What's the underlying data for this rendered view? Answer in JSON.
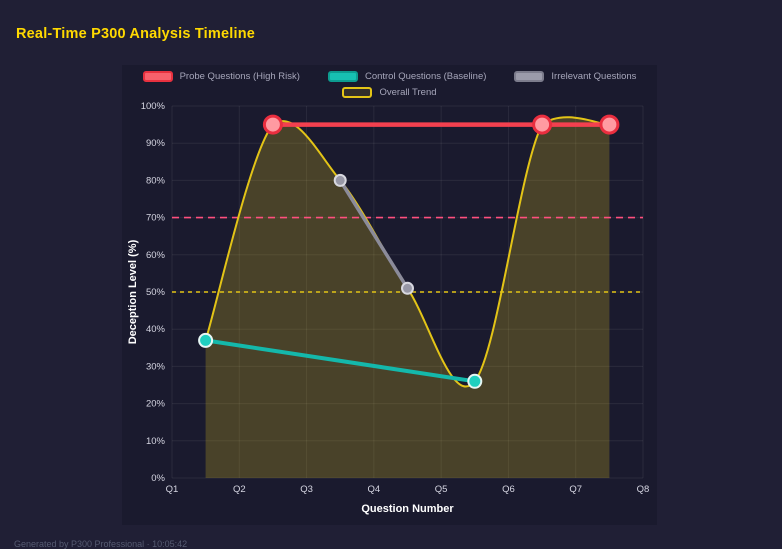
{
  "page": {
    "title": "Real-Time P300 Analysis Timeline",
    "footer": "Generated by P300 Professional · 10:05:42",
    "background": "#201f35",
    "panel_background": "#1a1a2e",
    "title_color": "#ffd900"
  },
  "chart_data": {
    "type": "line",
    "title": "Real-Time P300 Analysis Timeline",
    "x_label": "Question Number",
    "y_label": "Deception Level (%)",
    "x_range": [
      1,
      8
    ],
    "y_range": [
      0,
      100
    ],
    "grid": true,
    "x_ticks": [
      {
        "value": 1,
        "label": "Q1"
      },
      {
        "value": 2,
        "label": "Q2"
      },
      {
        "value": 3,
        "label": "Q3"
      },
      {
        "value": 4,
        "label": "Q4"
      },
      {
        "value": 5,
        "label": "Q5"
      },
      {
        "value": 6,
        "label": "Q6"
      },
      {
        "value": 7,
        "label": "Q7"
      },
      {
        "value": 8,
        "label": "Q8"
      }
    ],
    "y_ticks": [
      {
        "value": 0,
        "label": "0%"
      },
      {
        "value": 10,
        "label": "10%"
      },
      {
        "value": 20,
        "label": "20%"
      },
      {
        "value": 30,
        "label": "30%"
      },
      {
        "value": 40,
        "label": "40%"
      },
      {
        "value": 50,
        "label": "50%"
      },
      {
        "value": 60,
        "label": "60%"
      },
      {
        "value": 70,
        "label": "70%"
      },
      {
        "value": 80,
        "label": "80%"
      },
      {
        "value": 90,
        "label": "90%"
      },
      {
        "value": 100,
        "label": "100%"
      }
    ],
    "legend_rows": [
      [
        {
          "label": "Probe Questions (High Risk)",
          "fill": "#f8616c",
          "border": "#e8313f"
        },
        {
          "label": "Control Questions (Baseline)",
          "fill": "#17c0b2",
          "border": "#0d9c90"
        },
        {
          "label": "Irrelevant Questions",
          "fill": "#9b9baa",
          "border": "#7c7c8c"
        }
      ],
      [
        {
          "label": "Overall Trend",
          "fill": "rgba(227,196,23,0.12)",
          "border": "#e3c417"
        }
      ]
    ],
    "thresholds": [
      {
        "value": 70,
        "color": "#ff4f7e",
        "dash": "7 5"
      },
      {
        "value": 50,
        "color": "#e3c417",
        "dash": "4 4"
      }
    ],
    "series": [
      {
        "name": "Overall Trend",
        "color": "#e3c417",
        "line_width": 2,
        "smooth": true,
        "area_fill": "rgba(227,196,23,0.24)",
        "point_radius": 0,
        "points": [
          {
            "x": 1.5,
            "y": 37
          },
          {
            "x": 2.5,
            "y": 95
          },
          {
            "x": 3.5,
            "y": 80
          },
          {
            "x": 4.5,
            "y": 51
          },
          {
            "x": 5.5,
            "y": 26
          },
          {
            "x": 6.5,
            "y": 95
          },
          {
            "x": 7.5,
            "y": 95
          }
        ]
      },
      {
        "name": "Irrelevant Questions",
        "color": "#8b8b9a",
        "line_width": 3.5,
        "smooth": false,
        "point_radius": 5.5,
        "point_fill": "#9797a6",
        "point_stroke": "#d8d8e0",
        "point_stroke_width": 2,
        "points": [
          {
            "x": 3.5,
            "y": 80
          },
          {
            "x": 4.5,
            "y": 51
          }
        ]
      },
      {
        "name": "Control Questions (Baseline)",
        "color": "#14b8ab",
        "line_width": 4,
        "smooth": false,
        "point_radius": 6.5,
        "point_fill": "#1fd0c0",
        "point_stroke": "#e6f7f5",
        "point_stroke_width": 2,
        "points": [
          {
            "x": 1.5,
            "y": 37
          },
          {
            "x": 5.5,
            "y": 26
          }
        ]
      },
      {
        "name": "Probe Questions (High Risk)",
        "color": "#f3404f",
        "line_width": 4.5,
        "smooth": false,
        "point_radius": 8.5,
        "point_fill": "#ff9aa1",
        "point_stroke": "#ea2e3f",
        "point_stroke_width": 3,
        "points": [
          {
            "x": 2.5,
            "y": 95
          },
          {
            "x": 6.5,
            "y": 95
          },
          {
            "x": 7.5,
            "y": 95
          }
        ]
      }
    ]
  }
}
